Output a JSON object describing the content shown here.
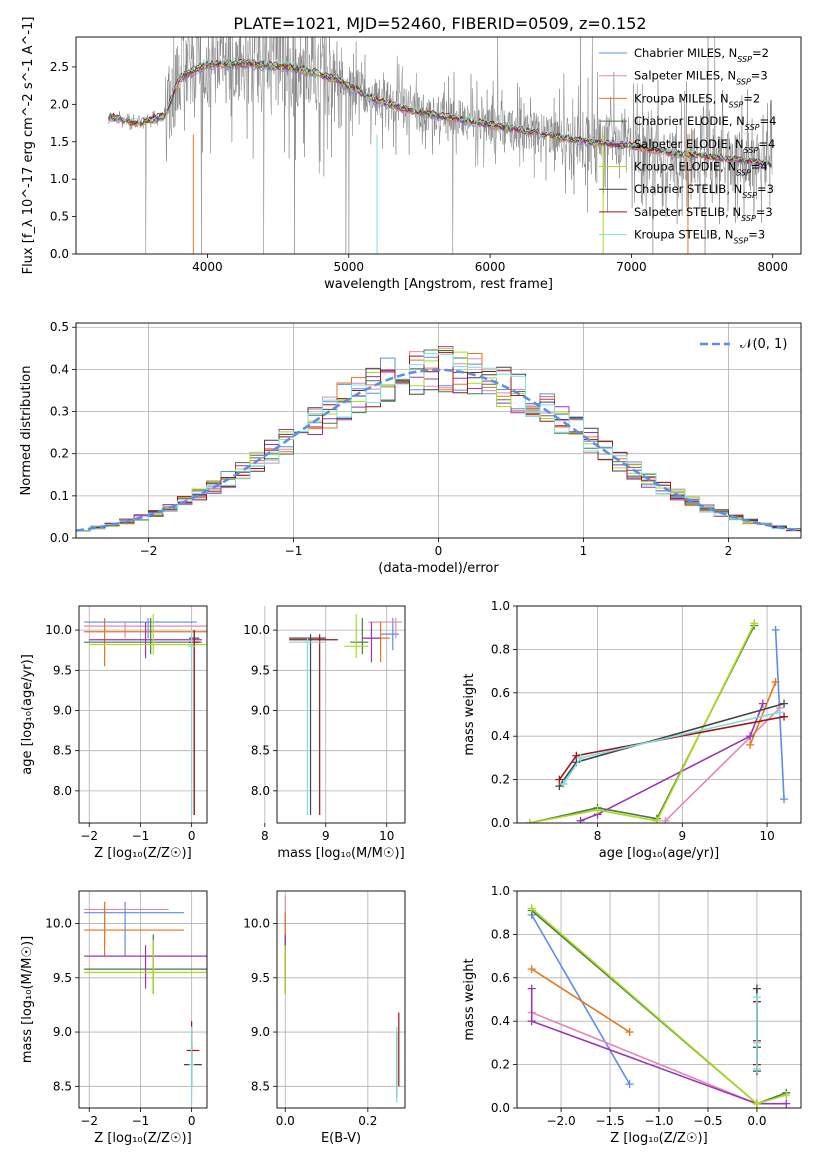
{
  "figure_title": "PLATE=1021, MJD=52460, FIBERID=0509, z=0.152",
  "colors": {
    "data": "#808080",
    "models": [
      "#5b8ee6",
      "#e287b8",
      "#e8761f",
      "#4a7a48",
      "#9a35b8",
      "#a8dc1c",
      "#444444",
      "#a31414",
      "#7fdede"
    ],
    "gauss": "#5b8ee6"
  },
  "chart_data": [
    {
      "id": "spectrum",
      "type": "line",
      "title": "",
      "xlabel": "wavelength [Angstrom, rest frame]",
      "ylabel": "Flux [f_λ 10^-17 erg cm^-2 s^-1 A^-1]",
      "xlim": [
        3070,
        8200
      ],
      "ylim": [
        0,
        2.9
      ],
      "xticks": [
        4000,
        5000,
        6000,
        7000,
        8000
      ],
      "yticks": [
        0.0,
        0.5,
        1.0,
        1.5,
        2.0,
        2.5
      ],
      "grid": false,
      "legend": "upper-right",
      "continuum_x": [
        3300,
        3500,
        3700,
        3800,
        4000,
        4300,
        4600,
        4900,
        5200,
        5500,
        5800,
        6100,
        6400,
        6700,
        7000,
        7300,
        7600,
        8000
      ],
      "continuum_y": [
        1.85,
        1.75,
        1.85,
        2.35,
        2.55,
        2.55,
        2.5,
        2.35,
        2.05,
        1.9,
        1.8,
        1.7,
        1.6,
        1.5,
        1.45,
        1.35,
        1.3,
        1.2
      ],
      "series": [
        {
          "name": "Chabrier MILES",
          "nssp": "2"
        },
        {
          "name": "Salpeter MILES",
          "nssp": "3"
        },
        {
          "name": "Kroupa MILES",
          "nssp": "2"
        },
        {
          "name": "Chabrier ELODIE",
          "nssp": "4"
        },
        {
          "name": "Salpeter ELODIE",
          "nssp": "4"
        },
        {
          "name": "Kroupa ELODIE",
          "nssp": "4"
        },
        {
          "name": "Chabrier STELIB",
          "nssp": "3"
        },
        {
          "name": "Salpeter STELIB",
          "nssp": "3"
        },
        {
          "name": "Kroupa STELIB",
          "nssp": "3"
        }
      ]
    },
    {
      "id": "residuals",
      "type": "line",
      "xlabel": "(data-model)/error",
      "ylabel": "Normed distribution",
      "xlim": [
        -2.5,
        2.5
      ],
      "ylim": [
        0,
        0.51
      ],
      "xticks": [
        -2,
        -1,
        0,
        1,
        2
      ],
      "yticks": [
        0.0,
        0.1,
        0.2,
        0.3,
        0.4,
        0.5
      ],
      "grid": true,
      "legend": "upper-right",
      "gauss_label": "𝒩(0, 1)",
      "bin_width": 0.1
    },
    {
      "id": "age-vs-Z",
      "type": "scatter",
      "xlabel": "Z [log₁₀(Z/Z☉)]",
      "ylabel": "age  [log₁₀(age/yr)]",
      "xlim": [
        -2.2,
        0.3
      ],
      "ylim": [
        7.6,
        10.3
      ],
      "xticks": [
        -2,
        -1,
        0
      ],
      "yticks": [
        8.0,
        8.5,
        9.0,
        9.5,
        10.0
      ],
      "grid": true,
      "points": [
        {
          "s": 0,
          "x": -0.85,
          "y": 10.1,
          "xl": -2.1,
          "xh": 0.1,
          "yl": 9.9,
          "yh": 10.15
        },
        {
          "s": 1,
          "x": -1.3,
          "y": 10.05,
          "xl": -2.1,
          "xh": 0.3,
          "yl": 9.9,
          "yh": 10.1
        },
        {
          "s": 2,
          "x": -1.7,
          "y": 9.98,
          "xl": -2.1,
          "xh": 0.3,
          "yl": 9.55,
          "yh": 10.15
        },
        {
          "s": 3,
          "x": -0.8,
          "y": 9.85,
          "xl": -2.1,
          "xh": 0.2,
          "yl": 9.7,
          "yh": 10.15
        },
        {
          "s": 4,
          "x": -0.9,
          "y": 9.88,
          "xl": -2.0,
          "xh": 0.2,
          "yl": 9.65,
          "yh": 10.1
        },
        {
          "s": 5,
          "x": -0.75,
          "y": 9.82,
          "xl": -2.0,
          "xh": 0.3,
          "yl": 9.7,
          "yh": 10.2
        },
        {
          "s": 6,
          "x": 0.05,
          "y": 9.9,
          "xl": -0.05,
          "xh": 0.15,
          "yl": 7.7,
          "yh": 10.0
        },
        {
          "s": 7,
          "x": 0.05,
          "y": 9.85,
          "xl": -0.05,
          "xh": 0.15,
          "yl": 7.7,
          "yh": 10.0
        },
        {
          "s": 8,
          "x": 0.0,
          "y": 9.8,
          "xl": -0.08,
          "xh": 0.08,
          "yl": 7.7,
          "yh": 10.0
        }
      ]
    },
    {
      "id": "age-vs-mass",
      "type": "scatter",
      "xlabel": "mass [log₁₀(M/M☉)]",
      "ylabel": "",
      "xlim": [
        8.2,
        10.3
      ],
      "ylim": [
        7.6,
        10.3
      ],
      "xticks": [
        8,
        9,
        10
      ],
      "yticks": [
        8.0,
        8.5,
        9.0,
        9.5,
        10.0
      ],
      "grid": true,
      "points": [
        {
          "s": 0,
          "x": 10.1,
          "y": 9.95,
          "xl": 9.9,
          "xh": 10.2,
          "yl": 9.75,
          "yh": 10.15
        },
        {
          "s": 1,
          "x": 10.15,
          "y": 10.1,
          "xl": 9.7,
          "xh": 10.25,
          "yl": 9.9,
          "yh": 10.15
        },
        {
          "s": 2,
          "x": 9.9,
          "y": 9.9,
          "xl": 9.6,
          "xh": 10.05,
          "yl": 9.6,
          "yh": 10.1
        },
        {
          "s": 3,
          "x": 9.6,
          "y": 9.85,
          "xl": 9.4,
          "xh": 9.7,
          "yl": 9.7,
          "yh": 10.15
        },
        {
          "s": 4,
          "x": 9.75,
          "y": 9.9,
          "xl": 9.6,
          "xh": 9.9,
          "yl": 9.6,
          "yh": 10.1
        },
        {
          "s": 5,
          "x": 9.5,
          "y": 9.8,
          "xl": 9.3,
          "xh": 9.7,
          "yl": 9.65,
          "yh": 10.2
        },
        {
          "s": 6,
          "x": 8.75,
          "y": 9.9,
          "xl": 8.4,
          "xh": 9.0,
          "yl": 7.7,
          "yh": 9.95
        },
        {
          "s": 7,
          "x": 8.9,
          "y": 9.88,
          "xl": 8.4,
          "xh": 9.2,
          "yl": 7.7,
          "yh": 9.95
        },
        {
          "s": 8,
          "x": 8.7,
          "y": 9.85,
          "xl": 8.4,
          "xh": 9.0,
          "yl": 7.7,
          "yh": 9.9
        }
      ]
    },
    {
      "id": "weight-vs-age",
      "type": "line",
      "xlabel": "age  [log₁₀(age/yr)]",
      "ylabel": "mass weight",
      "xlim": [
        7.05,
        10.4
      ],
      "ylim": [
        0,
        1
      ],
      "xticks": [
        8,
        9,
        10
      ],
      "yticks": [
        0.0,
        0.2,
        0.4,
        0.6,
        0.8,
        1.0
      ],
      "grid": true,
      "lines": [
        {
          "s": 0,
          "x": [
            10.1,
            10.2
          ],
          "y": [
            0.89,
            0.11
          ]
        },
        {
          "s": 1,
          "x": [
            8.8,
            10.15
          ],
          "y": [
            0.01,
            0.53
          ]
        },
        {
          "s": 2,
          "x": [
            9.8,
            10.1
          ],
          "y": [
            0.36,
            0.65
          ]
        },
        {
          "s": 3,
          "x": [
            7.2,
            8.0,
            8.7,
            9.85
          ],
          "y": [
            0.0,
            0.07,
            0.02,
            0.91
          ]
        },
        {
          "s": 4,
          "x": [
            7.8,
            8.0,
            9.8,
            9.95
          ],
          "y": [
            0.01,
            0.04,
            0.4,
            0.55
          ]
        },
        {
          "s": 5,
          "x": [
            7.2,
            8.0,
            8.7,
            9.85
          ],
          "y": [
            0.0,
            0.06,
            0.01,
            0.92
          ]
        },
        {
          "s": 6,
          "x": [
            7.55,
            7.75,
            10.2
          ],
          "y": [
            0.17,
            0.28,
            0.55
          ]
        },
        {
          "s": 7,
          "x": [
            7.55,
            7.75,
            10.2
          ],
          "y": [
            0.2,
            0.31,
            0.49
          ]
        },
        {
          "s": 8,
          "x": [
            7.6,
            7.8,
            10.15
          ],
          "y": [
            0.18,
            0.3,
            0.51
          ]
        }
      ]
    },
    {
      "id": "mass-vs-Z",
      "type": "scatter",
      "xlabel": "Z [log₁₀(Z/Z☉)]",
      "ylabel": "mass [log₁₀(M/M☉)]",
      "xlim": [
        -2.2,
        0.3
      ],
      "ylim": [
        8.3,
        10.3
      ],
      "xticks": [
        -2,
        -1,
        0
      ],
      "yticks": [
        8.5,
        9.0,
        9.5,
        10.0
      ],
      "grid": true,
      "points": [
        {
          "s": 0,
          "x": -1.3,
          "y": 10.1,
          "xl": -2.1,
          "xh": -0.15,
          "yl": 9.7,
          "yh": 10.2
        },
        {
          "s": 1,
          "x": -1.7,
          "y": 10.13,
          "xl": -2.1,
          "xh": -0.45,
          "yl": 9.8,
          "yh": 10.2
        },
        {
          "s": 2,
          "x": -1.7,
          "y": 9.94,
          "xl": -2.1,
          "xh": -0.15,
          "yl": 9.7,
          "yh": 10.2
        },
        {
          "s": 3,
          "x": -0.75,
          "y": 9.58,
          "xl": -2.1,
          "xh": 0.3,
          "yl": 9.35,
          "yh": 9.9
        },
        {
          "s": 4,
          "x": -0.9,
          "y": 9.7,
          "xl": -2.1,
          "xh": 0.3,
          "yl": 9.4,
          "yh": 9.8
        },
        {
          "s": 5,
          "x": -0.75,
          "y": 9.55,
          "xl": -2.1,
          "xh": 0.3,
          "yl": 9.35,
          "yh": 9.85
        },
        {
          "s": 6,
          "x": 0.0,
          "y": 8.7,
          "xl": -0.15,
          "xh": 0.2,
          "yl": 8.5,
          "yh": 8.9
        },
        {
          "s": 7,
          "x": 0.0,
          "y": 8.83,
          "xl": -0.1,
          "xh": 0.15,
          "yl": 8.7,
          "yh": 9.1
        },
        {
          "s": 8,
          "x": 0.0,
          "y": 8.7,
          "xl": -0.05,
          "xh": 0.05,
          "yl": 8.35,
          "yh": 9.05
        }
      ]
    },
    {
      "id": "mass-vs-EBV",
      "type": "scatter",
      "xlabel": "E(B-V)",
      "ylabel": "",
      "xlim": [
        -0.02,
        0.29
      ],
      "ylim": [
        8.3,
        10.3
      ],
      "xticks": [
        0.0,
        0.2
      ],
      "yticks": [
        8.5,
        9.0,
        9.5,
        10.0
      ],
      "grid": true,
      "points": [
        {
          "s": 0,
          "x": 0.0,
          "y": 9.85,
          "xl": 0.0,
          "xh": 0.0,
          "yl": 9.6,
          "yh": 10.1
        },
        {
          "s": 1,
          "x": 0.0,
          "y": 10.0,
          "xl": 0.0,
          "xh": 0.0,
          "yl": 9.8,
          "yh": 10.25
        },
        {
          "s": 2,
          "x": 0.0,
          "y": 9.9,
          "xl": 0.0,
          "xh": 0.0,
          "yl": 9.7,
          "yh": 10.1
        },
        {
          "s": 3,
          "x": 0.0,
          "y": 9.6,
          "xl": 0.0,
          "xh": 0.0,
          "yl": 9.35,
          "yh": 9.9
        },
        {
          "s": 4,
          "x": 0.0,
          "y": 9.7,
          "xl": 0.0,
          "xh": 0.0,
          "yl": 9.4,
          "yh": 9.9
        },
        {
          "s": 5,
          "x": 0.0,
          "y": 9.55,
          "xl": 0.0,
          "xh": 0.0,
          "yl": 9.35,
          "yh": 9.8
        },
        {
          "s": 6,
          "x": 0.27,
          "y": 8.7,
          "xl": 0.27,
          "xh": 0.27,
          "yl": 8.4,
          "yh": 9.0
        },
        {
          "s": 7,
          "x": 0.275,
          "y": 8.85,
          "xl": 0.275,
          "xh": 0.275,
          "yl": 8.5,
          "yh": 9.18
        },
        {
          "s": 8,
          "x": 0.27,
          "y": 8.7,
          "xl": 0.27,
          "xh": 0.27,
          "yl": 8.35,
          "yh": 9.05
        }
      ]
    },
    {
      "id": "weight-vs-Z",
      "type": "line",
      "xlabel": "Z [log₁₀(Z/Z☉)]",
      "ylabel": "mass weight",
      "xlim": [
        -2.45,
        0.45
      ],
      "ylim": [
        0,
        1
      ],
      "xticks": [
        -2.0,
        -1.5,
        -1.0,
        -0.5,
        0.0
      ],
      "yticks": [
        0.0,
        0.2,
        0.4,
        0.6,
        0.8,
        1.0
      ],
      "grid": true,
      "lines": [
        {
          "s": 0,
          "x": [
            -2.3,
            -1.3
          ],
          "y": [
            0.89,
            0.11
          ]
        },
        {
          "s": 1,
          "x": [
            -2.3,
            0.0
          ],
          "y": [
            0.44,
            0.02
          ]
        },
        {
          "s": 2,
          "x": [
            -2.3,
            -1.3
          ],
          "y": [
            0.64,
            0.35
          ]
        },
        {
          "s": 3,
          "x": [
            -2.3,
            0.0,
            0.3
          ],
          "y": [
            0.91,
            0.02,
            0.07
          ]
        },
        {
          "s": 4,
          "x": [
            -2.3,
            -2.3,
            0.0,
            0.3
          ],
          "y": [
            0.55,
            0.4,
            0.02,
            0.02
          ]
        },
        {
          "s": 5,
          "x": [
            -2.3,
            0.0,
            0.3
          ],
          "y": [
            0.92,
            0.02,
            0.06
          ]
        },
        {
          "s": 6,
          "x": [
            0.0,
            0.0,
            0.0
          ],
          "y": [
            0.17,
            0.28,
            0.55
          ]
        },
        {
          "s": 7,
          "x": [
            0.0,
            0.0,
            0.0
          ],
          "y": [
            0.2,
            0.31,
            0.49
          ]
        },
        {
          "s": 8,
          "x": [
            0.0,
            0.0,
            0.0
          ],
          "y": [
            0.18,
            0.3,
            0.51
          ]
        }
      ]
    }
  ]
}
